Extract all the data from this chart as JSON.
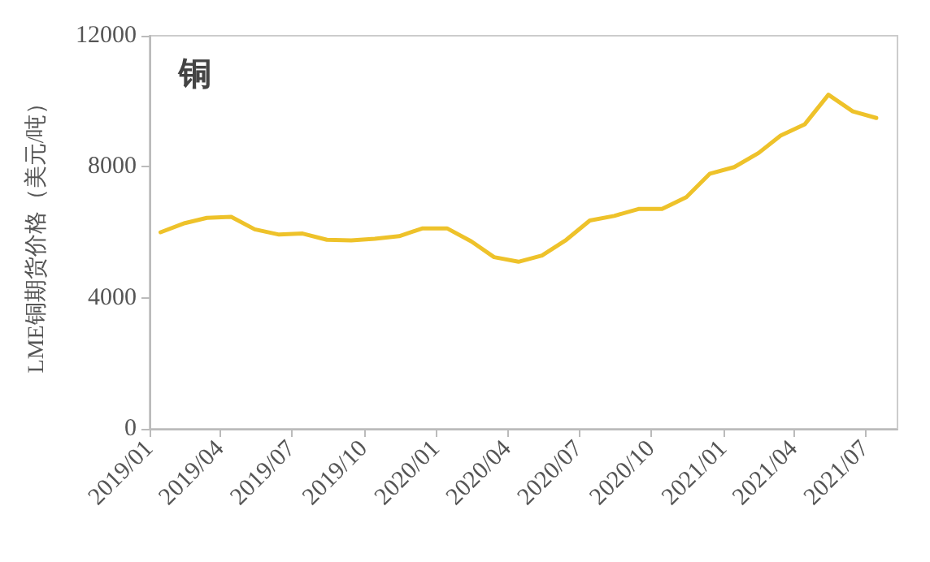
{
  "chart_data": {
    "type": "line",
    "title": "铜",
    "ylabel": "LME铜期货价格（美元/吨）",
    "x": [
      "2019-01-15",
      "2019-02-15",
      "2019-03-15",
      "2019-04-15",
      "2019-05-15",
      "2019-06-15",
      "2019-07-15",
      "2019-08-15",
      "2019-09-15",
      "2019-10-15",
      "2019-11-15",
      "2019-12-15",
      "2020-01-15",
      "2020-02-15",
      "2020-03-15",
      "2020-04-15",
      "2020-05-15",
      "2020-06-15",
      "2020-07-15",
      "2020-08-15",
      "2020-09-15",
      "2020-10-15",
      "2020-11-15",
      "2020-12-15",
      "2021-01-15",
      "2021-02-15",
      "2021-03-15",
      "2021-04-15",
      "2021-05-15",
      "2021-06-15",
      "2021-07-15"
    ],
    "series": [
      {
        "color": "#eec22a",
        "values": [
          6000,
          6280,
          6440,
          6470,
          6090,
          5930,
          5960,
          5770,
          5750,
          5800,
          5880,
          6120,
          6120,
          5720,
          5240,
          5100,
          5290,
          5770,
          6360,
          6500,
          6710,
          6710,
          7070,
          7790,
          7990,
          8420,
          8950,
          9300,
          10200,
          9690,
          9490
        ]
      }
    ],
    "xlim": [
      "2019-01-01",
      "2021-08-11"
    ],
    "xticks": [
      {
        "value": "2019-01-01",
        "label": "2019/01"
      },
      {
        "value": "2019-04-01",
        "label": "2019/04"
      },
      {
        "value": "2019-07-01",
        "label": "2019/07"
      },
      {
        "value": "2019-10-01",
        "label": "2019/10"
      },
      {
        "value": "2020-01-01",
        "label": "2020/01"
      },
      {
        "value": "2020-04-01",
        "label": "2020/04"
      },
      {
        "value": "2020-07-01",
        "label": "2020/07"
      },
      {
        "value": "2020-10-01",
        "label": "2020/10"
      },
      {
        "value": "2021-01-01",
        "label": "2021/01"
      },
      {
        "value": "2021-04-01",
        "label": "2021/04"
      },
      {
        "value": "2021-07-01",
        "label": "2021/07"
      }
    ],
    "ylim": [
      0,
      12000
    ],
    "yticks": [
      0,
      4000,
      8000,
      12000
    ],
    "grid": false,
    "marker": "none",
    "line_style": "solid"
  }
}
